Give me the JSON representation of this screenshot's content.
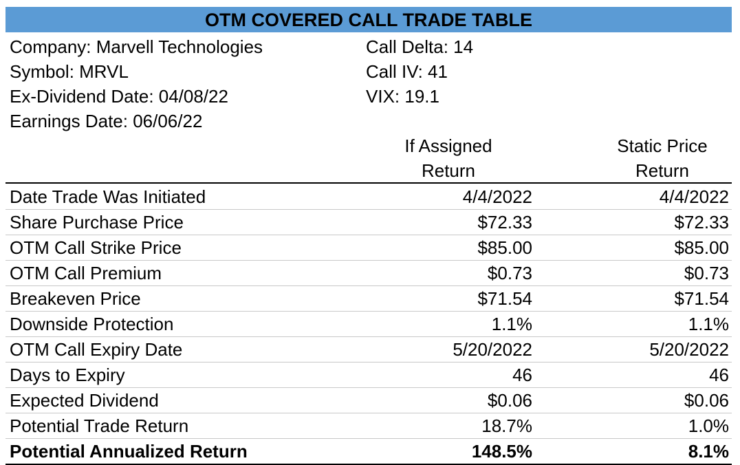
{
  "title": "OTM COVERED CALL TRADE TABLE",
  "info_left": [
    "Company: Marvell Technologies",
    "Symbol: MRVL",
    "Ex-Dividend Date:  04/08/22",
    "Earnings Date: 06/06/22"
  ],
  "info_right": [
    "Call Delta: 14",
    "Call IV: 41",
    "VIX: 19.1"
  ],
  "columns": {
    "a": [
      "If Assigned",
      "Return"
    ],
    "b": [
      "Static Price",
      "Return"
    ]
  },
  "colors": {
    "title_bg": "#5b9bd5"
  },
  "rows": [
    {
      "label": "Date Trade Was Initiated",
      "a": "4/4/2022",
      "b": "4/4/2022"
    },
    {
      "label": "Share Purchase Price",
      "a": "$72.33",
      "b": "$72.33"
    },
    {
      "label": "OTM Call Strike Price",
      "a": "$85.00",
      "b": "$85.00"
    },
    {
      "label": "OTM Call Premium",
      "a": "$0.73",
      "b": "$0.73"
    },
    {
      "label": "Breakeven Price",
      "a": "$71.54",
      "b": "$71.54"
    },
    {
      "label": "Downside Protection",
      "a": "1.1%",
      "b": "1.1%"
    },
    {
      "label": "OTM Call Expiry Date",
      "a": "5/20/2022",
      "b": "5/20/2022"
    },
    {
      "label": "Days to Expiry",
      "a": "46",
      "b": "46"
    },
    {
      "label": "Expected Dividend",
      "a": "$0.06",
      "b": "$0.06"
    },
    {
      "label": "Potential Trade Return",
      "a": "18.7%",
      "b": "1.0%"
    },
    {
      "label": "Potential Annualized Return",
      "a": "148.5%",
      "b": "8.1%"
    }
  ]
}
